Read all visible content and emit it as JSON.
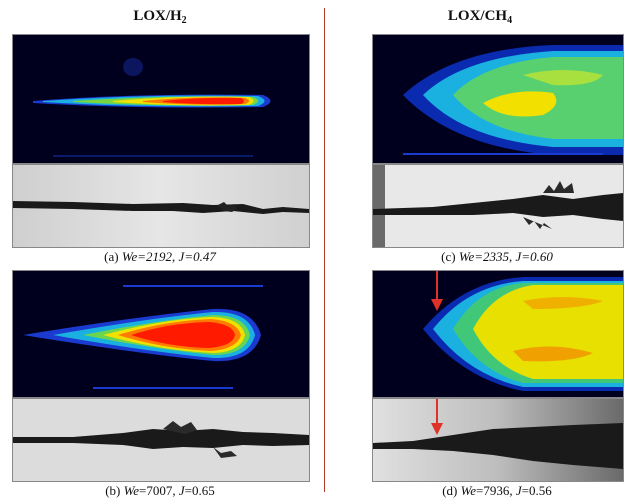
{
  "columns": [
    {
      "formula_base": "LOX/H",
      "subscript": "2"
    },
    {
      "formula_base": "LOX/CH",
      "subscript": "4"
    }
  ],
  "cases": [
    {
      "tag": "(a)",
      "we_label": "We",
      "we_value": "=2192",
      "sep": ", ",
      "j_label": "J",
      "j_value": "=0.47"
    },
    {
      "tag": "(b)",
      "we_label": "We",
      "we_value": "=7007",
      "sep": ", ",
      "j_label": "J",
      "j_value": "=0.65"
    },
    {
      "tag": "(c)",
      "we_label": "We",
      "we_value": "=2335",
      "sep": ", ",
      "j_label": "J",
      "j_value": "=0.60"
    },
    {
      "tag": "(d)",
      "we_label": "We",
      "we_value": "=7936",
      "sep": ", ",
      "j_label": "J",
      "j_value": "=0.56"
    }
  ],
  "colors": {
    "divider": "#b0392b",
    "arrow": "#e0302a",
    "flame_background": "#00001e",
    "spray_background": "#d9d9d9"
  }
}
